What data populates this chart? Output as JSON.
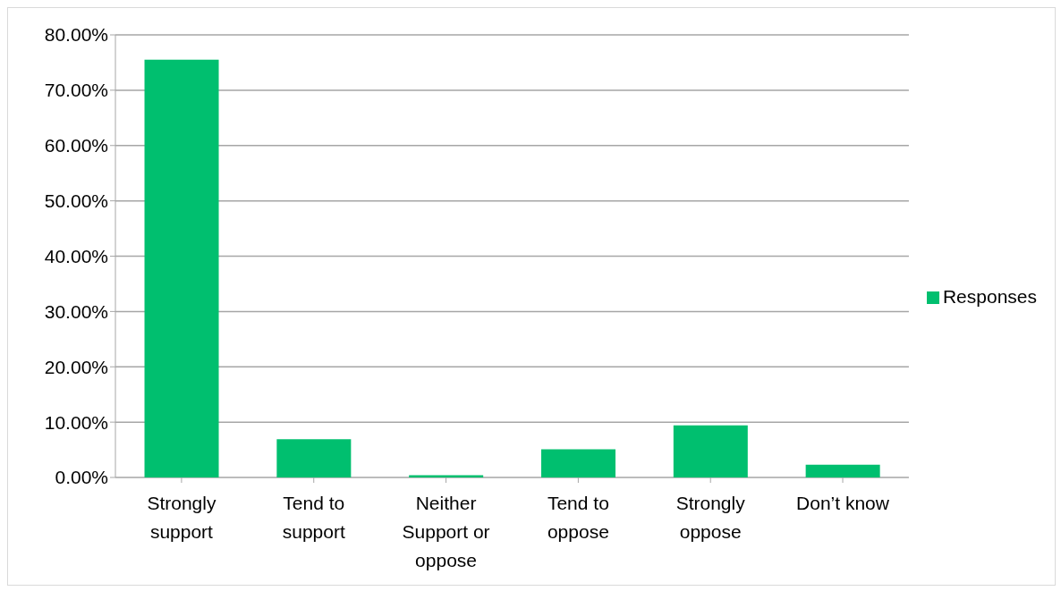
{
  "chart_data": {
    "type": "bar",
    "categories": [
      "Strongly support",
      "Tend to support",
      "Neither Support or oppose",
      "Tend to oppose",
      "Strongly oppose",
      "Don’t know"
    ],
    "series": [
      {
        "name": "Responses",
        "color": "#00bf6f",
        "values": [
          75.5,
          6.9,
          0.4,
          5.1,
          9.4,
          2.3
        ]
      }
    ],
    "ylim": [
      0,
      80
    ],
    "yticks": [
      {
        "value": 0,
        "label": "0.00%"
      },
      {
        "value": 10,
        "label": "10.00%"
      },
      {
        "value": 20,
        "label": "20.00%"
      },
      {
        "value": 30,
        "label": "30.00%"
      },
      {
        "value": 40,
        "label": "40.00%"
      },
      {
        "value": 50,
        "label": "50.00%"
      },
      {
        "value": 60,
        "label": "60.00%"
      },
      {
        "value": 70,
        "label": "70.00%"
      },
      {
        "value": 80,
        "label": "80.00%"
      }
    ],
    "grid": "y",
    "legend": "right"
  }
}
